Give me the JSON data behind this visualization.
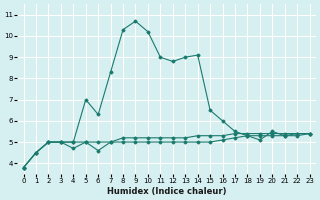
{
  "xlabel": "Humidex (Indice chaleur)",
  "background_color": "#d6eff0",
  "grid_color": "#ffffff",
  "line_color": "#1a7a6e",
  "xlim": [
    -0.5,
    23.5
  ],
  "ylim": [
    3.5,
    11.5
  ],
  "xticks": [
    0,
    1,
    2,
    3,
    4,
    5,
    6,
    7,
    8,
    9,
    10,
    11,
    12,
    13,
    14,
    15,
    16,
    17,
    18,
    19,
    20,
    21,
    22,
    23
  ],
  "yticks": [
    4,
    5,
    6,
    7,
    8,
    9,
    10,
    11
  ],
  "line1_x": [
    0,
    1,
    2,
    3,
    4,
    5,
    6,
    7,
    8,
    9,
    10,
    11,
    12,
    13,
    14,
    15,
    16,
    17,
    18,
    19,
    20,
    21,
    22,
    23
  ],
  "line1_y": [
    3.8,
    4.5,
    5.0,
    5.0,
    5.0,
    5.0,
    5.0,
    5.0,
    5.0,
    5.0,
    5.0,
    5.0,
    5.0,
    5.0,
    5.0,
    5.0,
    5.1,
    5.2,
    5.3,
    5.3,
    5.3,
    5.3,
    5.3,
    5.4
  ],
  "line2_x": [
    0,
    1,
    2,
    3,
    4,
    5,
    6,
    7,
    8,
    9,
    10,
    11,
    12,
    13,
    14,
    15,
    16,
    17,
    18,
    19,
    20,
    21,
    22,
    23
  ],
  "line2_y": [
    3.8,
    4.5,
    5.0,
    5.0,
    4.7,
    5.0,
    4.6,
    5.0,
    5.2,
    5.2,
    5.2,
    5.2,
    5.2,
    5.2,
    5.3,
    5.3,
    5.3,
    5.4,
    5.4,
    5.4,
    5.4,
    5.4,
    5.4,
    5.4
  ],
  "line3_x": [
    0,
    1,
    2,
    3,
    4,
    5,
    6,
    7,
    8,
    9,
    10,
    11,
    12,
    13,
    14,
    15,
    16,
    17,
    18,
    19,
    20,
    21,
    22,
    23
  ],
  "line3_y": [
    3.8,
    4.5,
    5.0,
    5.0,
    5.0,
    7.0,
    6.3,
    8.3,
    10.3,
    10.7,
    10.2,
    9.0,
    8.8,
    9.0,
    9.1,
    6.5,
    6.0,
    5.5,
    5.3,
    5.1,
    5.5,
    5.3,
    5.4,
    5.4
  ]
}
